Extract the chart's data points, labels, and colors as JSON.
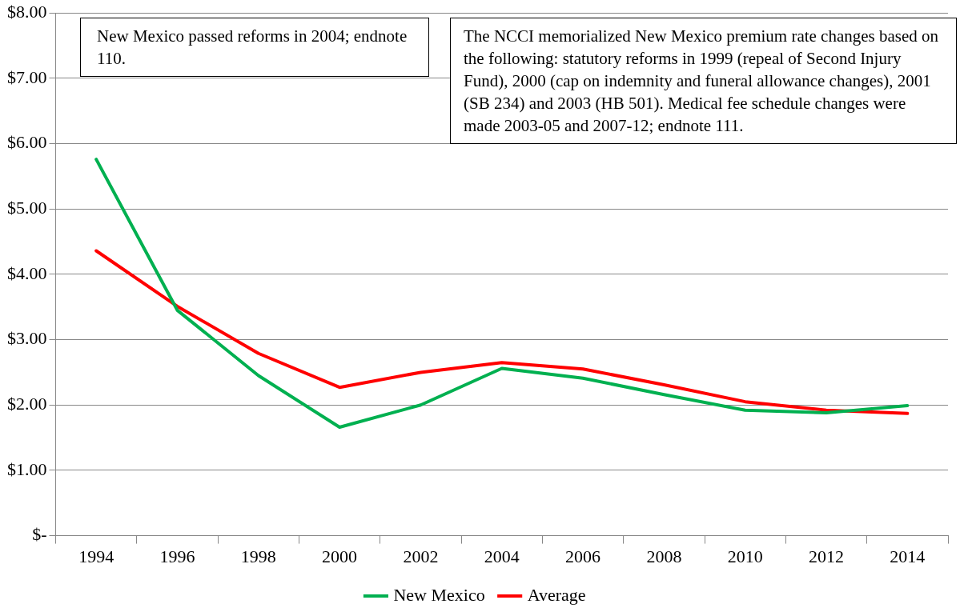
{
  "chart_data": {
    "type": "line",
    "categories": [
      "1994",
      "1996",
      "1998",
      "2000",
      "2002",
      "2004",
      "2006",
      "2008",
      "2010",
      "2012",
      "2014"
    ],
    "series": [
      {
        "name": "New Mexico",
        "color": "#00b050",
        "values": [
          5.76,
          3.45,
          2.45,
          1.66,
          2.0,
          2.56,
          2.41,
          2.16,
          1.92,
          1.88,
          1.99
        ]
      },
      {
        "name": "Average",
        "color": "#ff0000",
        "values": [
          4.36,
          3.51,
          2.79,
          2.27,
          2.5,
          2.65,
          2.55,
          2.31,
          2.05,
          1.92,
          1.87
        ]
      }
    ],
    "ylim": [
      0,
      8
    ],
    "yticks": [
      {
        "value": 0,
        "label": "$-"
      },
      {
        "value": 1,
        "label": "$1.00"
      },
      {
        "value": 2,
        "label": "$2.00"
      },
      {
        "value": 3,
        "label": "$3.00"
      },
      {
        "value": 4,
        "label": "$4.00"
      },
      {
        "value": 5,
        "label": "$5.00"
      },
      {
        "value": 6,
        "label": "$6.00"
      },
      {
        "value": 7,
        "label": "$7.00"
      },
      {
        "value": 8,
        "label": "$8.00"
      }
    ],
    "grid": "y",
    "legend": "bottom",
    "marker": "none",
    "line_style": "solid",
    "annotations": [
      "New Mexico passed reforms in 2004; endnote 110.",
      "The NCCI memorialized New Mexico premium rate changes based on the following: statutory reforms in 1999 (repeal of Second Injury Fund), 2000 (cap on indemnity and funeral allowance changes), 2001 (SB 234) and 2003 (HB 501). Medical fee schedule changes were made 2003-05 and 2007-12; endnote 111."
    ]
  }
}
